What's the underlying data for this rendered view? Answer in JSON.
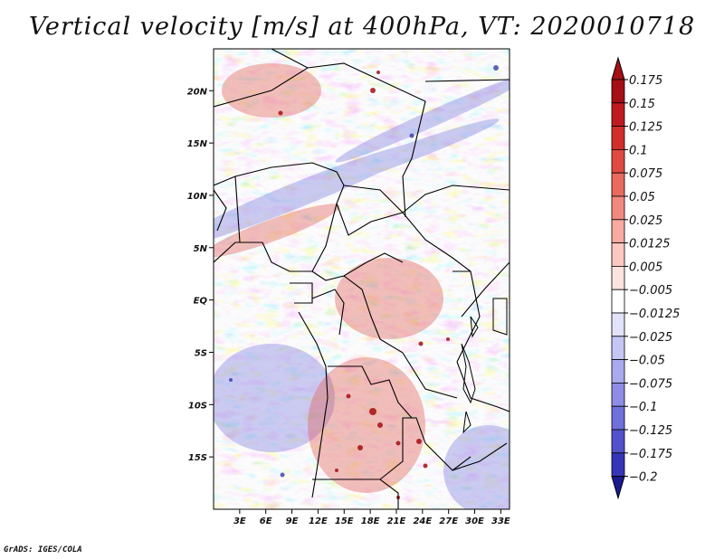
{
  "title": "Vertical velocity [m/s] at 400hPa, VT: 2020010718",
  "credit": "GrADS: IGES/COLA",
  "map": {
    "lon_range": [
      0,
      34
    ],
    "lat_range": [
      -20,
      24
    ],
    "lat_ticks": [
      {
        "value": 20,
        "label": "20N"
      },
      {
        "value": 15,
        "label": "15N"
      },
      {
        "value": 10,
        "label": "10N"
      },
      {
        "value": 5,
        "label": "5N"
      },
      {
        "value": 0,
        "label": "EQ"
      },
      {
        "value": -5,
        "label": "5S"
      },
      {
        "value": -10,
        "label": "10S"
      },
      {
        "value": -15,
        "label": "15S"
      }
    ],
    "lon_ticks": [
      {
        "value": 3,
        "label": "3E"
      },
      {
        "value": 6,
        "label": "6E"
      },
      {
        "value": 9,
        "label": "9E"
      },
      {
        "value": 12,
        "label": "12E"
      },
      {
        "value": 15,
        "label": "15E"
      },
      {
        "value": 18,
        "label": "18E"
      },
      {
        "value": 21,
        "label": "21E"
      },
      {
        "value": 24,
        "label": "24E"
      },
      {
        "value": 27,
        "label": "27E"
      },
      {
        "value": 30,
        "label": "30E"
      },
      {
        "value": 33,
        "label": "33E"
      }
    ]
  },
  "colorbar": {
    "levels": [
      {
        "label": "0.175",
        "color": "#a50f15"
      },
      {
        "label": "0.15",
        "color": "#bf1a1f"
      },
      {
        "label": "0.125",
        "color": "#d22e2a"
      },
      {
        "label": "0.1",
        "color": "#e04a40"
      },
      {
        "label": "0.075",
        "color": "#ea6a5e"
      },
      {
        "label": "0.05",
        "color": "#f2897e"
      },
      {
        "label": "0.025",
        "color": "#f8aaa0"
      },
      {
        "label": "0.0125",
        "color": "#fcc8c0"
      },
      {
        "label": "0.005",
        "color": "#fde3de"
      },
      {
        "label": "−0.005",
        "color": "#ffffff"
      },
      {
        "label": "−0.0125",
        "color": "#e2e2fb"
      },
      {
        "label": "−0.025",
        "color": "#c6c6f5"
      },
      {
        "label": "−0.05",
        "color": "#a9a9ee"
      },
      {
        "label": "−0.075",
        "color": "#8d8de6"
      },
      {
        "label": "−0.1",
        "color": "#7070dc"
      },
      {
        "label": "−0.125",
        "color": "#5252cc"
      },
      {
        "label": "−0.175",
        "color": "#3535b8"
      },
      {
        "label": "−0.2",
        "color": "#2020a0"
      }
    ],
    "bottom_color": "#1a1a90"
  }
}
